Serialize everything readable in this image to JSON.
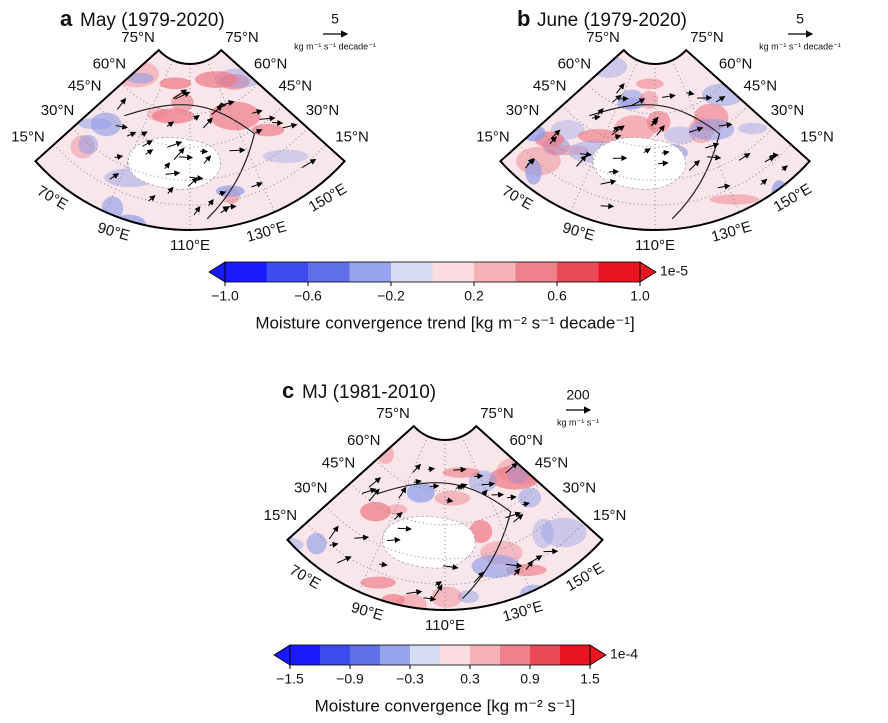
{
  "panels": [
    {
      "letter": "a",
      "title": "May (1979-2020)",
      "left_lat": [
        "75°N",
        "60°N",
        "45°N",
        "30°N",
        "15°N"
      ],
      "right_lat": [
        "75°N",
        "60°N",
        "45°N",
        "30°N",
        "15°N"
      ],
      "lon_labels": [
        "70°E",
        "90°E",
        "110°E",
        "130°E",
        "150°E"
      ],
      "vector_key": {
        "value": 5,
        "units": "kg m⁻¹ s⁻¹ decade⁻¹"
      }
    },
    {
      "letter": "b",
      "title": "June (1979-2020)",
      "left_lat": [
        "75°N",
        "60°N",
        "45°N",
        "30°N",
        "15°N"
      ],
      "right_lat": [
        "75°N",
        "60°N",
        "45°N",
        "30°N",
        "15°N"
      ],
      "lon_labels": [
        "70°E",
        "90°E",
        "110°E",
        "130°E",
        "150°E"
      ],
      "vector_key": {
        "value": 5,
        "units": "kg m⁻¹ s⁻¹ decade⁻¹"
      }
    },
    {
      "letter": "c",
      "title": "MJ (1981-2010)",
      "left_lat": [
        "75°N",
        "60°N",
        "45°N",
        "30°N",
        "15°N"
      ],
      "right_lat": [
        "75°N",
        "60°N",
        "45°N",
        "30°N",
        "15°N"
      ],
      "lon_labels": [
        "70°E",
        "90°E",
        "110°E",
        "130°E",
        "150°E"
      ],
      "vector_key": {
        "value": 200,
        "units": "kg m⁻¹ s⁻¹"
      }
    }
  ],
  "colorbars": [
    {
      "lim": [
        -1.0,
        1.0
      ],
      "ticks": [
        {
          "value": -1.0,
          "label": "−1.0"
        },
        {
          "value": -0.6,
          "label": "−0.6"
        },
        {
          "value": -0.2,
          "label": "−0.2"
        },
        0.2,
        0.6,
        {
          "value": 1.0,
          "label": "1.0"
        }
      ],
      "multiplier": "1e-5",
      "label": "Moisture convergence trend [kg m⁻² s⁻¹ decade⁻¹]",
      "colors": [
        "#1a1aff",
        "#3d4cf0",
        "#5f6fe6",
        "#98a3ee",
        "#d6dbf6",
        "#fbdde1",
        "#f6b2b9",
        "#f0808b",
        "#ea4a58",
        "#e8141f"
      ]
    },
    {
      "lim": [
        -1.5,
        1.5
      ],
      "ticks": [
        {
          "value": -1.5,
          "label": "−1.5"
        },
        {
          "value": -0.9,
          "label": "−0.9"
        },
        {
          "value": -0.3,
          "label": "−0.3"
        },
        0.3,
        0.9,
        1.5
      ],
      "multiplier": "1e-4",
      "label": "Moisture convergence [kg m⁻² s⁻¹]",
      "colors": [
        "#1a1aff",
        "#3d4cf0",
        "#5f6fe6",
        "#98a3ee",
        "#d6dbf6",
        "#fbdde1",
        "#f6b2b9",
        "#f0808b",
        "#ea4a58",
        "#e8141f"
      ]
    }
  ]
}
